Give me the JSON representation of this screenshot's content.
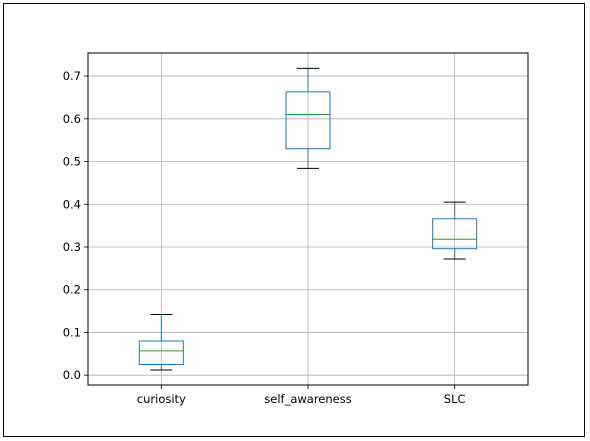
{
  "chart_data": {
    "type": "box",
    "title": "",
    "xlabel": "",
    "ylabel": "",
    "categories": [
      "curiosity",
      "self_awareness",
      "SLC"
    ],
    "boxes": [
      {
        "name": "curiosity",
        "whisker_low": 0.012,
        "q1": 0.025,
        "median": 0.057,
        "q3": 0.08,
        "whisker_high": 0.142
      },
      {
        "name": "self_awareness",
        "whisker_low": 0.484,
        "q1": 0.53,
        "median": 0.61,
        "q3": 0.663,
        "whisker_high": 0.718
      },
      {
        "name": "SLC",
        "whisker_low": 0.272,
        "q1": 0.296,
        "median": 0.318,
        "q3": 0.366,
        "whisker_high": 0.405
      }
    ],
    "yticks": [
      "0.0",
      "0.1",
      "0.2",
      "0.3",
      "0.4",
      "0.5",
      "0.6",
      "0.7"
    ],
    "ylim": [
      -0.023,
      0.754
    ],
    "grid": true,
    "colors": {
      "box": "#1f77b4",
      "median": "#2ca02c",
      "whisker_cap": "#000000",
      "grid": "#b0b0b0"
    }
  }
}
